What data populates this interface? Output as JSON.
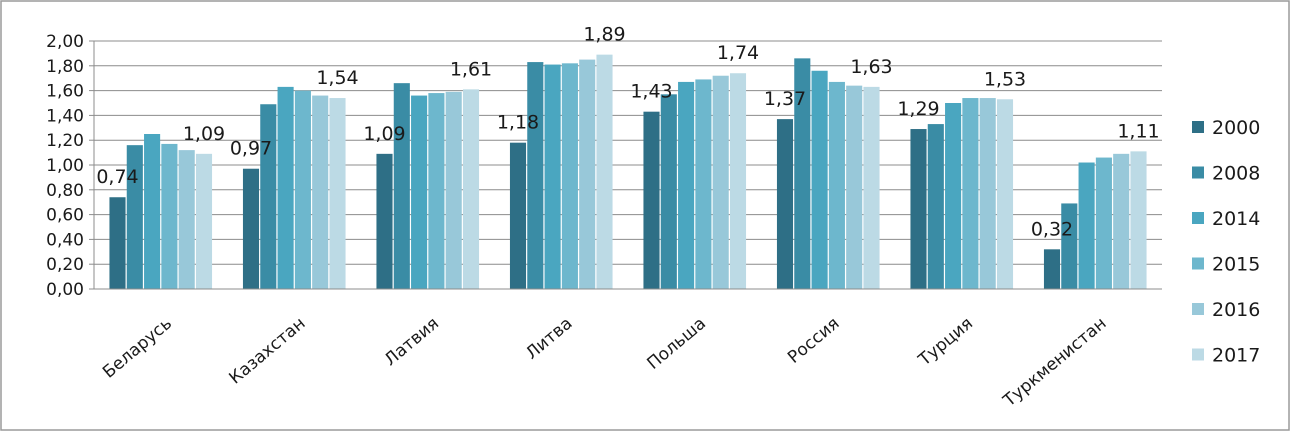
{
  "chart_data": {
    "type": "bar",
    "title": "",
    "xlabel": "",
    "ylabel": "",
    "ylim": [
      0,
      2.0
    ],
    "y_ticks": [
      "0,00",
      "0,20",
      "0,40",
      "0,60",
      "0,80",
      "1,00",
      "1,20",
      "1,40",
      "1,60",
      "1,80",
      "2,00"
    ],
    "grid": true,
    "legend_position": "right",
    "categories": [
      "Беларусь",
      "Казахстан",
      "Латвия",
      "Литва",
      "Польша",
      "Россия",
      "Турция",
      "Туркменистан"
    ],
    "series": [
      {
        "name": "2000",
        "color": "#2e6f86",
        "values": [
          0.74,
          0.97,
          1.09,
          1.18,
          1.43,
          1.37,
          1.29,
          0.32
        ]
      },
      {
        "name": "2008",
        "color": "#3a8ca5",
        "values": [
          1.16,
          1.49,
          1.66,
          1.83,
          1.57,
          1.86,
          1.33,
          0.69
        ]
      },
      {
        "name": "2014",
        "color": "#4aa6c0",
        "values": [
          1.25,
          1.63,
          1.56,
          1.81,
          1.67,
          1.76,
          1.5,
          1.02
        ]
      },
      {
        "name": "2015",
        "color": "#6db7cd",
        "values": [
          1.17,
          1.6,
          1.58,
          1.82,
          1.69,
          1.67,
          1.54,
          1.06
        ]
      },
      {
        "name": "2016",
        "color": "#98c8d9",
        "values": [
          1.12,
          1.56,
          1.59,
          1.85,
          1.72,
          1.64,
          1.54,
          1.09
        ]
      },
      {
        "name": "2017",
        "color": "#bcdae5",
        "values": [
          1.09,
          1.54,
          1.61,
          1.89,
          1.74,
          1.63,
          1.53,
          1.11
        ]
      }
    ],
    "data_labels": [
      {
        "category": 0,
        "series": 0,
        "text": "0,74"
      },
      {
        "category": 0,
        "series": 5,
        "text": "1,09"
      },
      {
        "category": 1,
        "series": 0,
        "text": "0,97"
      },
      {
        "category": 1,
        "series": 5,
        "text": "1,54"
      },
      {
        "category": 2,
        "series": 0,
        "text": "1,09"
      },
      {
        "category": 2,
        "series": 5,
        "text": "1,61"
      },
      {
        "category": 3,
        "series": 0,
        "text": "1,18"
      },
      {
        "category": 3,
        "series": 5,
        "text": "1,89"
      },
      {
        "category": 4,
        "series": 0,
        "text": "1,43"
      },
      {
        "category": 4,
        "series": 5,
        "text": "1,74"
      },
      {
        "category": 5,
        "series": 0,
        "text": "1,37"
      },
      {
        "category": 5,
        "series": 5,
        "text": "1,63"
      },
      {
        "category": 6,
        "series": 0,
        "text": "1,29"
      },
      {
        "category": 6,
        "series": 5,
        "text": "1,53"
      },
      {
        "category": 7,
        "series": 0,
        "text": "0,32"
      },
      {
        "category": 7,
        "series": 5,
        "text": "1,11"
      }
    ]
  }
}
